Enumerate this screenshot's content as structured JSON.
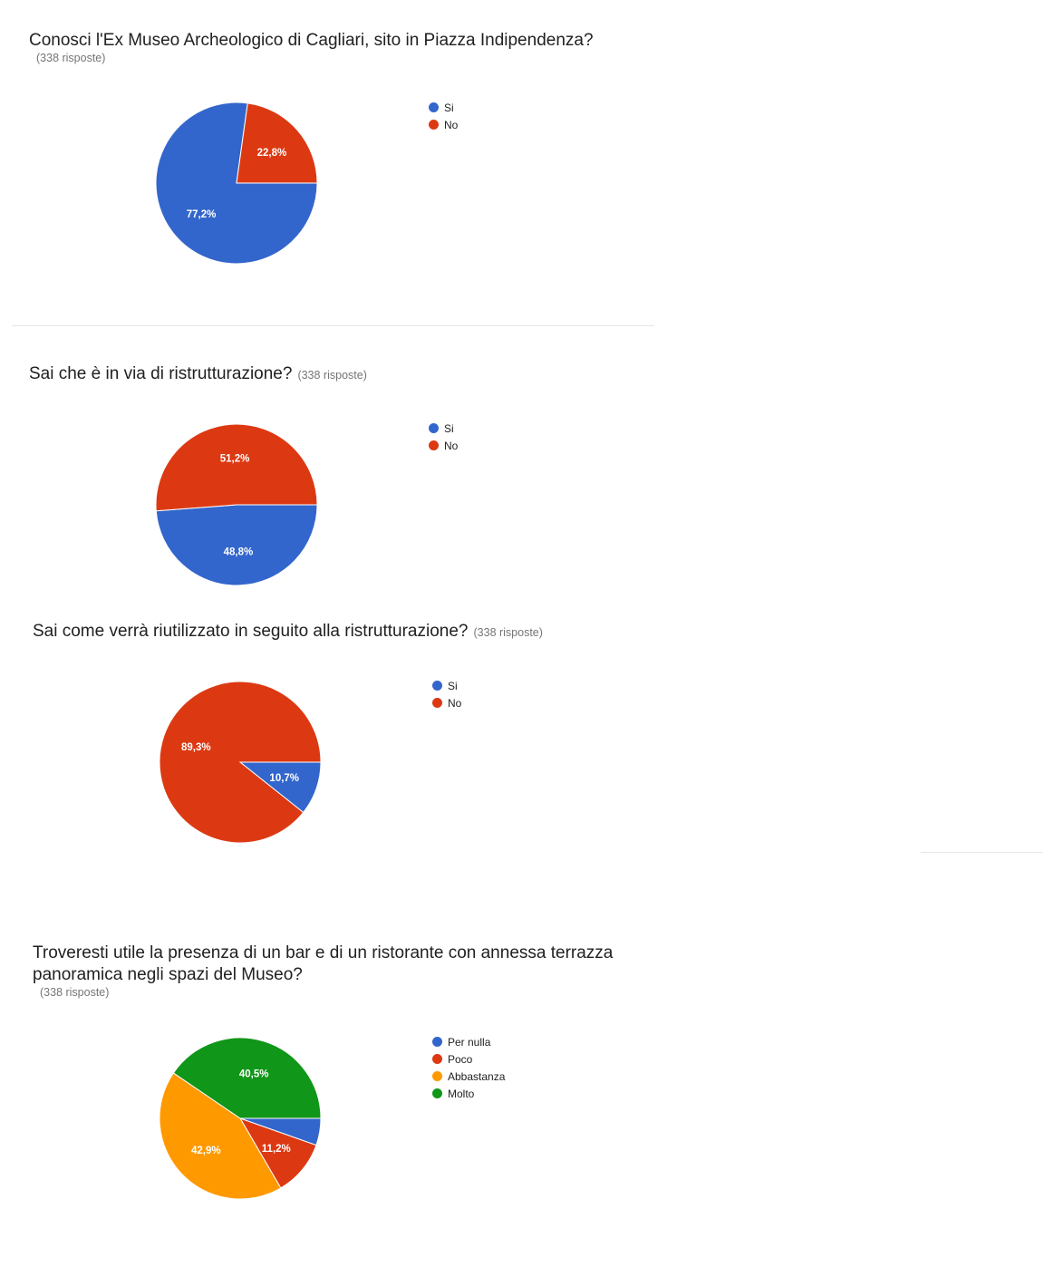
{
  "colors": {
    "blue": "#3366cc",
    "red": "#dc3912",
    "orange": "#ff9900",
    "green": "#109618"
  },
  "chart_data": [
    {
      "type": "pie",
      "title": "Conosci l'Ex Museo Archeologico di Cagliari, sito in Piazza Indipendenza?",
      "responses": "(338 risposte)",
      "categories": [
        "Si",
        "No"
      ],
      "values": [
        77.2,
        22.8
      ],
      "labels": [
        "77,2%",
        "22,8%"
      ],
      "colors": [
        "#3366cc",
        "#dc3912"
      ],
      "legend_position": "right"
    },
    {
      "type": "pie",
      "title": "Sai che è in via di ristrutturazione?",
      "responses": "(338 risposte)",
      "categories": [
        "Si",
        "No"
      ],
      "values": [
        48.8,
        51.2
      ],
      "labels": [
        "48,8%",
        "51,2%"
      ],
      "colors": [
        "#3366cc",
        "#dc3912"
      ],
      "legend_position": "right"
    },
    {
      "type": "pie",
      "title": "Sai come verrà riutilizzato in seguito alla ristrutturazione?",
      "responses": "(338 risposte)",
      "categories": [
        "Si",
        "No"
      ],
      "values": [
        10.7,
        89.3
      ],
      "labels": [
        "10,7%",
        "89,3%"
      ],
      "colors": [
        "#3366cc",
        "#dc3912"
      ],
      "legend_position": "right"
    },
    {
      "type": "pie",
      "title_line1": "Troveresti utile la presenza di un bar e di un ristorante con annessa terrazza",
      "title_line2": "panoramica negli spazi del Museo?",
      "responses": "(338 risposte)",
      "categories": [
        "Per nulla",
        "Poco",
        "Abbastanza",
        "Molto"
      ],
      "values": [
        5.4,
        11.2,
        42.9,
        40.5
      ],
      "labels": [
        "",
        "11,2%",
        "42,9%",
        "40,5%"
      ],
      "colors": [
        "#3366cc",
        "#dc3912",
        "#ff9900",
        "#109618"
      ],
      "legend_position": "right"
    }
  ]
}
